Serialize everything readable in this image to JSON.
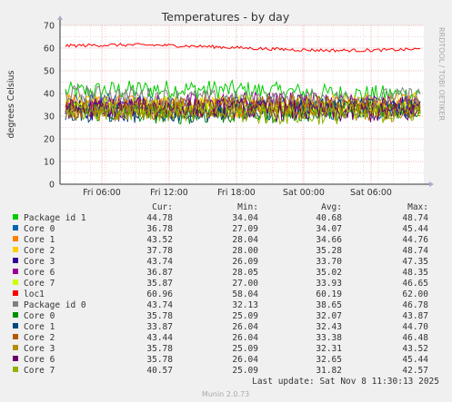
{
  "chart_data": {
    "type": "line",
    "title": "Temperatures - by day",
    "ylabel": "degrees Celsius",
    "ylim": [
      0,
      70
    ],
    "yticks": [
      "0",
      "10",
      "20",
      "30",
      "40",
      "50",
      "60",
      "70"
    ],
    "xticks": [
      "Fri 06:00",
      "Fri 12:00",
      "Fri 18:00",
      "Sat 00:00",
      "Sat 06:00"
    ],
    "grid": true,
    "side_label": "RRDTOOL / TOBI OETIKER",
    "legend_headers": [
      "Cur:",
      "Min:",
      "Avg:",
      "Max:"
    ],
    "series": [
      {
        "name": "Package id 1",
        "color": "#00cc00",
        "cur": "44.78",
        "min": "34.04",
        "avg": "40.68",
        "max": "48.74",
        "level": 40.68,
        "amp": 4.2
      },
      {
        "name": "Core 0",
        "color": "#0066b3",
        "cur": "36.78",
        "min": "27.09",
        "avg": "34.07",
        "max": "45.44",
        "level": 34.07,
        "amp": 4.5
      },
      {
        "name": "Core 1",
        "color": "#ff8000",
        "cur": "43.52",
        "min": "28.04",
        "avg": "34.66",
        "max": "44.76",
        "level": 34.66,
        "amp": 4.3
      },
      {
        "name": "Core 2",
        "color": "#ffcc00",
        "cur": "37.78",
        "min": "28.00",
        "avg": "35.28",
        "max": "48.74",
        "level": 35.28,
        "amp": 4.6
      },
      {
        "name": "Core 3",
        "color": "#330099",
        "cur": "43.74",
        "min": "26.09",
        "avg": "33.70",
        "max": "47.35",
        "level": 33.7,
        "amp": 4.8
      },
      {
        "name": "Core 6",
        "color": "#990099",
        "cur": "36.87",
        "min": "28.05",
        "avg": "35.02",
        "max": "48.35",
        "level": 35.02,
        "amp": 4.5
      },
      {
        "name": "Core 7",
        "color": "#ccff00",
        "cur": "35.87",
        "min": "27.00",
        "avg": "33.93",
        "max": "46.65",
        "level": 33.93,
        "amp": 4.4
      },
      {
        "name": "loc1",
        "color": "#ff0000",
        "cur": "60.96",
        "min": "58.04",
        "avg": "60.19",
        "max": "62.00",
        "level": 60.19,
        "amp": 0.7
      },
      {
        "name": "Package id 0",
        "color": "#808080",
        "cur": "43.74",
        "min": "32.13",
        "avg": "38.65",
        "max": "46.78",
        "level": 38.65,
        "amp": 3.8
      },
      {
        "name": "Core 0",
        "color": "#008f00",
        "cur": "35.78",
        "min": "25.09",
        "avg": "32.07",
        "max": "43.87",
        "level": 32.07,
        "amp": 4.5
      },
      {
        "name": "Core 1",
        "color": "#00487d",
        "cur": "33.87",
        "min": "26.04",
        "avg": "32.43",
        "max": "44.70",
        "level": 32.43,
        "amp": 4.4
      },
      {
        "name": "Core 2",
        "color": "#b35a00",
        "cur": "43.44",
        "min": "26.04",
        "avg": "33.38",
        "max": "46.48",
        "level": 33.38,
        "amp": 4.6
      },
      {
        "name": "Core 3",
        "color": "#b38f00",
        "cur": "35.78",
        "min": "25.09",
        "avg": "32.31",
        "max": "43.52",
        "level": 32.31,
        "amp": 4.5
      },
      {
        "name": "Core 6",
        "color": "#6b006b",
        "cur": "35.78",
        "min": "26.04",
        "avg": "32.65",
        "max": "45.44",
        "level": 32.65,
        "amp": 4.5
      },
      {
        "name": "Core 7",
        "color": "#8fb300",
        "cur": "40.57",
        "min": "25.09",
        "avg": "31.82",
        "max": "42.57",
        "level": 31.82,
        "amp": 4.5
      }
    ],
    "last_update": "Last update:  Sat Nov  8 11:30:13 2025",
    "version": "Munin 2.0.73"
  }
}
